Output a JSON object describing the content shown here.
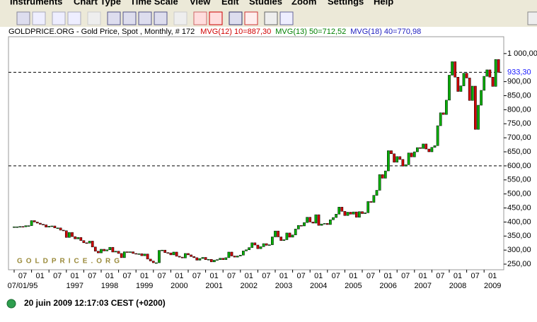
{
  "menu": [
    "Instruments",
    "Chart Type",
    "Time Scale",
    "View",
    "Edit",
    "Studies",
    "Zoom",
    "Settings",
    "Help"
  ],
  "chart_data": {
    "type": "candlestick",
    "title": "GOLDPRICE.ORG - Gold Price, Spot , Monthly, # 172",
    "indicators": [
      {
        "text": "MVG(12) 10=887,30",
        "color": "#d00000"
      },
      {
        "text": "MVG(13) 50=712,52",
        "color": "#008000"
      },
      {
        "text": "MVG(18) 40=770,98",
        "color": "#2020c0"
      }
    ],
    "watermark": "GOLDPRICE.ORG",
    "up_color": "#00b000",
    "down_color": "#d00000",
    "closes": [
      383,
      383,
      384,
      383,
      387,
      387,
      405,
      400,
      396,
      392,
      390,
      382,
      385,
      386,
      379,
      379,
      371,
      369,
      345,
      363,
      348,
      340,
      345,
      334,
      326,
      325,
      332,
      311,
      296,
      290,
      303,
      297,
      301,
      310,
      293,
      296,
      288,
      273,
      294,
      292,
      294,
      288,
      287,
      287,
      280,
      286,
      268,
      261,
      255,
      255,
      299,
      300,
      291,
      290,
      283,
      293,
      278,
      275,
      272,
      288,
      283,
      277,
      273,
      264,
      270,
      274,
      266,
      267,
      258,
      264,
      266,
      271,
      266,
      273,
      293,
      279,
      275,
      279,
      282,
      297,
      301,
      309,
      326,
      318,
      305,
      312,
      323,
      317,
      319,
      347,
      368,
      347,
      334,
      337,
      361,
      346,
      354,
      375,
      388,
      386,
      398,
      417,
      400,
      396,
      426,
      388,
      393,
      395,
      391,
      408,
      416,
      428,
      453,
      438,
      423,
      435,
      428,
      436,
      417,
      437,
      430,
      433,
      473,
      470,
      495,
      513,
      569,
      556,
      582,
      654,
      643,
      613,
      633,
      623,
      599,
      604,
      646,
      632,
      650,
      665,
      662,
      678,
      660,
      650,
      666,
      672,
      743,
      789,
      783,
      834,
      923,
      971,
      916,
      865,
      885,
      930,
      913,
      833,
      884,
      730,
      816,
      869,
      919,
      942,
      916,
      883,
      979,
      933
    ],
    "ylim": [
      230,
      1060
    ],
    "yticks": [
      {
        "value": 250,
        "label": "250,00"
      },
      {
        "value": 300,
        "label": "300,00"
      },
      {
        "value": 350,
        "label": "350,00"
      },
      {
        "value": 400,
        "label": "400,00"
      },
      {
        "value": 450,
        "label": "450,00"
      },
      {
        "value": 500,
        "label": "500,00"
      },
      {
        "value": 550,
        "label": "550,00"
      },
      {
        "value": 600,
        "label": "600,00"
      },
      {
        "value": 650,
        "label": "650,00"
      },
      {
        "value": 700,
        "label": "700,00"
      },
      {
        "value": 750,
        "label": "750,00"
      },
      {
        "value": 800,
        "label": "800,00"
      },
      {
        "value": 850,
        "label": "850,00"
      },
      {
        "value": 900,
        "label": "900,00"
      },
      {
        "value": 1000,
        "label": "1 000,00"
      }
    ],
    "xticks": [
      {
        "value": 0,
        "label": "07"
      },
      {
        "value": 6,
        "label": "01"
      },
      {
        "value": 12,
        "label": "07"
      },
      {
        "value": 18,
        "label": "01"
      },
      {
        "value": 24,
        "label": "07"
      },
      {
        "value": 30,
        "label": "01"
      },
      {
        "value": 36,
        "label": "07"
      },
      {
        "value": 42,
        "label": "01"
      },
      {
        "value": 48,
        "label": "07"
      },
      {
        "value": 54,
        "label": "01"
      },
      {
        "value": 60,
        "label": "07"
      },
      {
        "value": 66,
        "label": "01"
      },
      {
        "value": 72,
        "label": "07"
      },
      {
        "value": 78,
        "label": "01"
      },
      {
        "value": 84,
        "label": "07"
      },
      {
        "value": 90,
        "label": "01"
      },
      {
        "value": 96,
        "label": "07"
      },
      {
        "value": 102,
        "label": "01"
      },
      {
        "value": 108,
        "label": "07"
      },
      {
        "value": 114,
        "label": "01"
      },
      {
        "value": 120,
        "label": "07"
      },
      {
        "value": 126,
        "label": "01"
      },
      {
        "value": 132,
        "label": "07"
      },
      {
        "value": 138,
        "label": "01"
      },
      {
        "value": 144,
        "label": "07"
      },
      {
        "value": 150,
        "label": "01"
      },
      {
        "value": 156,
        "label": "07"
      },
      {
        "value": 162,
        "label": "01"
      }
    ],
    "year_ticks": [
      {
        "value": 0,
        "label": "07/01/95"
      },
      {
        "value": 18,
        "label": "1997"
      },
      {
        "value": 30,
        "label": "1998"
      },
      {
        "value": 42,
        "label": "1999"
      },
      {
        "value": 54,
        "label": "2000"
      },
      {
        "value": 66,
        "label": "2001"
      },
      {
        "value": 78,
        "label": "2002"
      },
      {
        "value": 90,
        "label": "2003"
      },
      {
        "value": 102,
        "label": "2004"
      },
      {
        "value": 114,
        "label": "2005"
      },
      {
        "value": 126,
        "label": "2006"
      },
      {
        "value": 138,
        "label": "2007"
      },
      {
        "value": 150,
        "label": "2008"
      },
      {
        "value": 162,
        "label": "2009"
      }
    ],
    "reference_lines": [
      {
        "value": 933.3,
        "label": "933,30"
      },
      {
        "value": 600
      }
    ]
  },
  "status": "20 juin 2009 12:17:03 CEST (+0200)"
}
